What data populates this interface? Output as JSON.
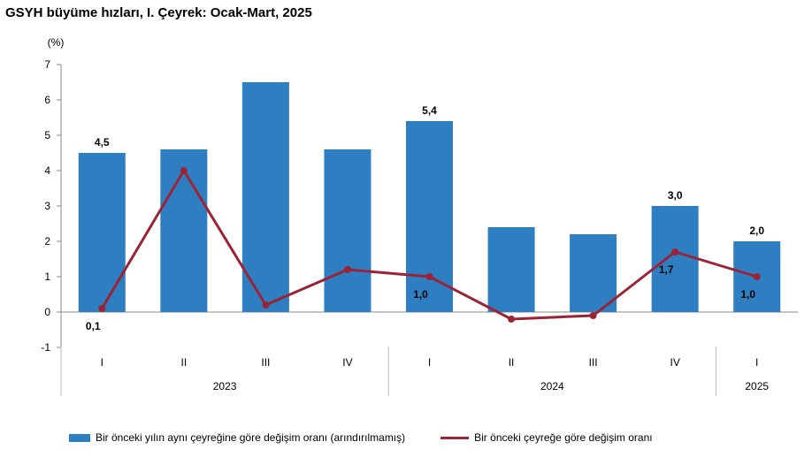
{
  "page": {
    "title": "GSYH büyüme hızları, I. Çeyrek: Ocak-Mart, 2025"
  },
  "chart_data": {
    "type": "bar",
    "unit_label": "(%)",
    "categories": [
      "I",
      "II",
      "III",
      "IV",
      "I",
      "II",
      "III",
      "IV",
      "I"
    ],
    "year_groups": [
      {
        "label": "2023",
        "span": 4
      },
      {
        "label": "2024",
        "span": 4
      },
      {
        "label": "2025",
        "span": 1
      }
    ],
    "ylim": [
      -1,
      7
    ],
    "yticks": [
      -1,
      0,
      1,
      2,
      3,
      4,
      5,
      6,
      7
    ],
    "legend_position": "bottom",
    "grid": false,
    "series": [
      {
        "name": "Bir önceki yılın aynı çeyreğine göre değişim oranı (arındırılmamış)",
        "type": "bar",
        "color": "#2e7fc1",
        "values": [
          4.5,
          4.6,
          6.5,
          4.6,
          5.4,
          2.4,
          2.2,
          3.0,
          2.0
        ],
        "labels": [
          "4,5",
          "",
          "",
          "",
          "5,4",
          "",
          "",
          "3,0",
          "2,0"
        ]
      },
      {
        "name": "Bir önceki çeyreğe göre değişim oranı",
        "type": "line",
        "color": "#9b2335",
        "values": [
          0.1,
          4.0,
          0.2,
          1.2,
          1.0,
          -0.2,
          -0.1,
          1.7,
          1.0
        ],
        "labels": [
          "0,1",
          "",
          "",
          "",
          "1,0",
          "",
          "",
          "1,7",
          "1,0"
        ]
      }
    ]
  }
}
